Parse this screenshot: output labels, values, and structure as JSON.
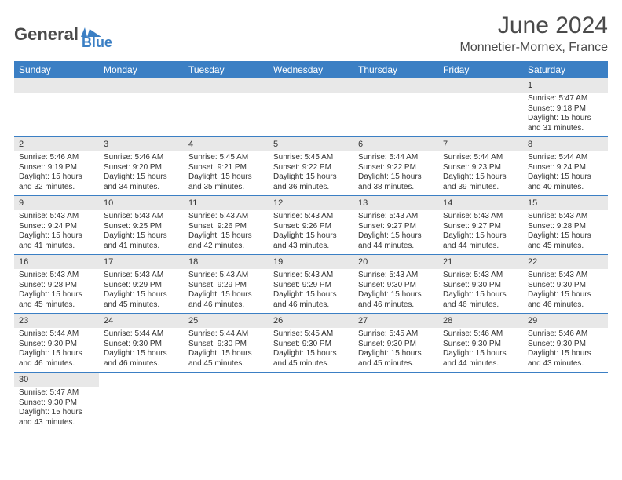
{
  "logo": {
    "part1": "General",
    "part2": "Blue"
  },
  "title": "June 2024",
  "location": "Monnetier-Mornex, France",
  "colors": {
    "header_bg": "#3b7fc4",
    "header_text": "#ffffff",
    "daynum_bg": "#e8e8e8",
    "border": "#3b7fc4",
    "text": "#333333",
    "logo_gray": "#4a4a4a",
    "logo_blue": "#3b7fc4"
  },
  "day_headers": [
    "Sunday",
    "Monday",
    "Tuesday",
    "Wednesday",
    "Thursday",
    "Friday",
    "Saturday"
  ],
  "weeks": [
    [
      null,
      null,
      null,
      null,
      null,
      null,
      {
        "n": "1",
        "sr": "5:47 AM",
        "ss": "9:18 PM",
        "dl": "15 hours and 31 minutes."
      }
    ],
    [
      {
        "n": "2",
        "sr": "5:46 AM",
        "ss": "9:19 PM",
        "dl": "15 hours and 32 minutes."
      },
      {
        "n": "3",
        "sr": "5:46 AM",
        "ss": "9:20 PM",
        "dl": "15 hours and 34 minutes."
      },
      {
        "n": "4",
        "sr": "5:45 AM",
        "ss": "9:21 PM",
        "dl": "15 hours and 35 minutes."
      },
      {
        "n": "5",
        "sr": "5:45 AM",
        "ss": "9:22 PM",
        "dl": "15 hours and 36 minutes."
      },
      {
        "n": "6",
        "sr": "5:44 AM",
        "ss": "9:22 PM",
        "dl": "15 hours and 38 minutes."
      },
      {
        "n": "7",
        "sr": "5:44 AM",
        "ss": "9:23 PM",
        "dl": "15 hours and 39 minutes."
      },
      {
        "n": "8",
        "sr": "5:44 AM",
        "ss": "9:24 PM",
        "dl": "15 hours and 40 minutes."
      }
    ],
    [
      {
        "n": "9",
        "sr": "5:43 AM",
        "ss": "9:24 PM",
        "dl": "15 hours and 41 minutes."
      },
      {
        "n": "10",
        "sr": "5:43 AM",
        "ss": "9:25 PM",
        "dl": "15 hours and 41 minutes."
      },
      {
        "n": "11",
        "sr": "5:43 AM",
        "ss": "9:26 PM",
        "dl": "15 hours and 42 minutes."
      },
      {
        "n": "12",
        "sr": "5:43 AM",
        "ss": "9:26 PM",
        "dl": "15 hours and 43 minutes."
      },
      {
        "n": "13",
        "sr": "5:43 AM",
        "ss": "9:27 PM",
        "dl": "15 hours and 44 minutes."
      },
      {
        "n": "14",
        "sr": "5:43 AM",
        "ss": "9:27 PM",
        "dl": "15 hours and 44 minutes."
      },
      {
        "n": "15",
        "sr": "5:43 AM",
        "ss": "9:28 PM",
        "dl": "15 hours and 45 minutes."
      }
    ],
    [
      {
        "n": "16",
        "sr": "5:43 AM",
        "ss": "9:28 PM",
        "dl": "15 hours and 45 minutes."
      },
      {
        "n": "17",
        "sr": "5:43 AM",
        "ss": "9:29 PM",
        "dl": "15 hours and 45 minutes."
      },
      {
        "n": "18",
        "sr": "5:43 AM",
        "ss": "9:29 PM",
        "dl": "15 hours and 46 minutes."
      },
      {
        "n": "19",
        "sr": "5:43 AM",
        "ss": "9:29 PM",
        "dl": "15 hours and 46 minutes."
      },
      {
        "n": "20",
        "sr": "5:43 AM",
        "ss": "9:30 PM",
        "dl": "15 hours and 46 minutes."
      },
      {
        "n": "21",
        "sr": "5:43 AM",
        "ss": "9:30 PM",
        "dl": "15 hours and 46 minutes."
      },
      {
        "n": "22",
        "sr": "5:43 AM",
        "ss": "9:30 PM",
        "dl": "15 hours and 46 minutes."
      }
    ],
    [
      {
        "n": "23",
        "sr": "5:44 AM",
        "ss": "9:30 PM",
        "dl": "15 hours and 46 minutes."
      },
      {
        "n": "24",
        "sr": "5:44 AM",
        "ss": "9:30 PM",
        "dl": "15 hours and 46 minutes."
      },
      {
        "n": "25",
        "sr": "5:44 AM",
        "ss": "9:30 PM",
        "dl": "15 hours and 45 minutes."
      },
      {
        "n": "26",
        "sr": "5:45 AM",
        "ss": "9:30 PM",
        "dl": "15 hours and 45 minutes."
      },
      {
        "n": "27",
        "sr": "5:45 AM",
        "ss": "9:30 PM",
        "dl": "15 hours and 45 minutes."
      },
      {
        "n": "28",
        "sr": "5:46 AM",
        "ss": "9:30 PM",
        "dl": "15 hours and 44 minutes."
      },
      {
        "n": "29",
        "sr": "5:46 AM",
        "ss": "9:30 PM",
        "dl": "15 hours and 43 minutes."
      }
    ],
    [
      {
        "n": "30",
        "sr": "5:47 AM",
        "ss": "9:30 PM",
        "dl": "15 hours and 43 minutes."
      },
      null,
      null,
      null,
      null,
      null,
      null
    ]
  ],
  "labels": {
    "sunrise": "Sunrise:",
    "sunset": "Sunset:",
    "daylight": "Daylight:"
  }
}
